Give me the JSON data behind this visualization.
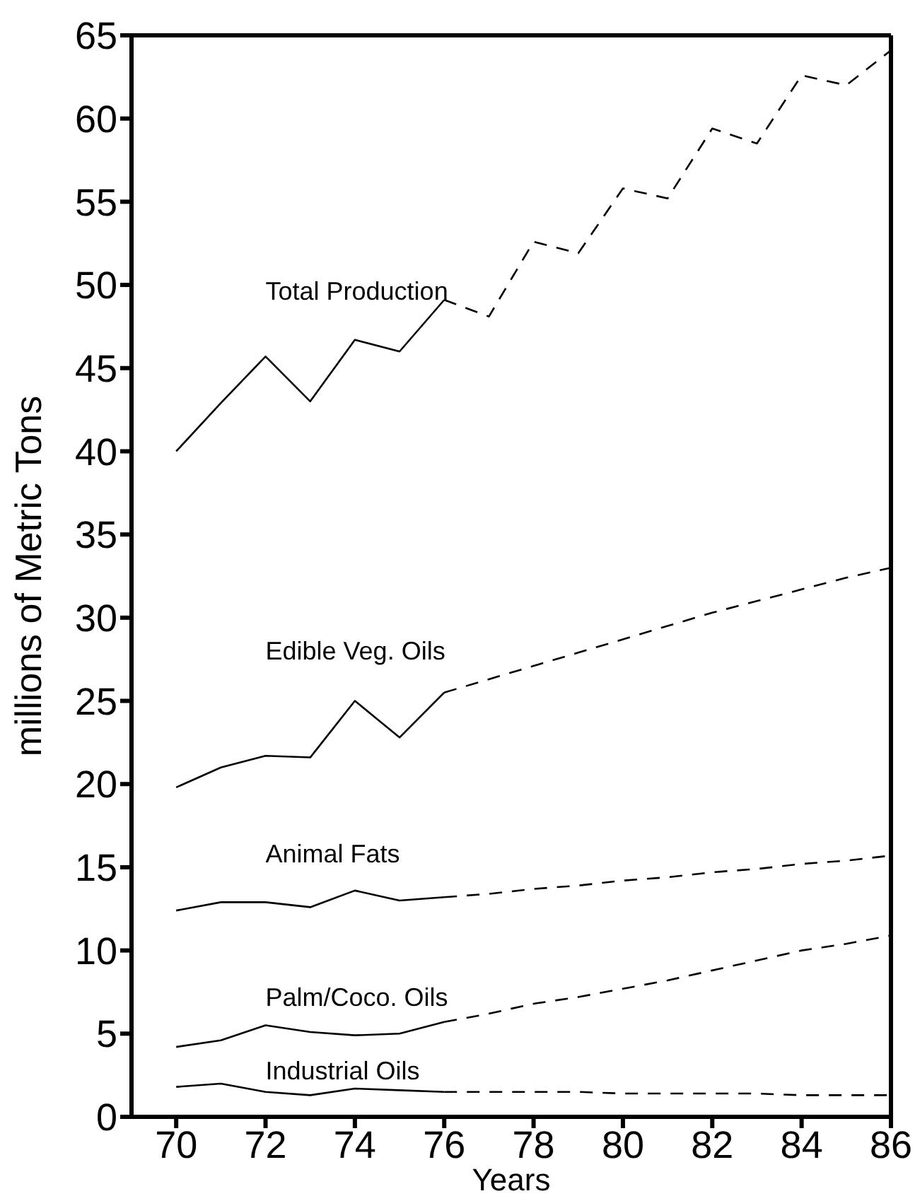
{
  "chart_data": {
    "type": "line",
    "xlabel": "Years",
    "ylabel": "millions of Metric Tons",
    "xlim": [
      69,
      86
    ],
    "ylim": [
      0,
      65
    ],
    "xticks": [
      70,
      72,
      74,
      76,
      78,
      80,
      82,
      84,
      86
    ],
    "yticks": [
      0,
      5,
      10,
      15,
      20,
      25,
      30,
      35,
      40,
      45,
      50,
      55,
      60,
      65
    ],
    "grid": false,
    "legend": false,
    "marker": "none",
    "series": [
      {
        "name": "Total Production",
        "color": "#000000",
        "line_style": "solid",
        "x": [
          70,
          71,
          72,
          73,
          74,
          75,
          76
        ],
        "values": [
          40,
          42.9,
          45.7,
          43.0,
          46.7,
          46.0,
          49.1
        ]
      },
      {
        "color": "#000000",
        "line_style": "dashed",
        "x": [
          76,
          77,
          78,
          79,
          80,
          81,
          82,
          83,
          84,
          85,
          86
        ],
        "values": [
          49.1,
          48.1,
          52.6,
          51.9,
          55.8,
          55.2,
          59.4,
          58.5,
          62.6,
          62.0,
          64.1
        ]
      },
      {
        "name": "Edible Veg. Oils",
        "color": "#000000",
        "line_style": "solid",
        "x": [
          70,
          71,
          72,
          73,
          74,
          75,
          76
        ],
        "values": [
          19.8,
          21.0,
          21.7,
          21.6,
          25.0,
          22.8,
          25.5
        ]
      },
      {
        "color": "#000000",
        "line_style": "dashed",
        "x": [
          76,
          77,
          78,
          79,
          80,
          81,
          82,
          83,
          84,
          85,
          86
        ],
        "values": [
          25.5,
          26.3,
          27.1,
          27.9,
          28.7,
          29.5,
          30.3,
          31.0,
          31.7,
          32.4,
          33.0
        ]
      },
      {
        "name": "Animal Fats",
        "color": "#000000",
        "line_style": "solid",
        "x": [
          70,
          71,
          72,
          73,
          74,
          75,
          76
        ],
        "values": [
          12.4,
          12.9,
          12.9,
          12.6,
          13.6,
          13.0,
          13.2
        ]
      },
      {
        "color": "#000000",
        "line_style": "dashed",
        "x": [
          76,
          77,
          78,
          79,
          80,
          81,
          82,
          83,
          84,
          85,
          86
        ],
        "values": [
          13.2,
          13.4,
          13.7,
          13.9,
          14.2,
          14.4,
          14.7,
          14.9,
          15.2,
          15.4,
          15.7
        ]
      },
      {
        "name": "Palm/Coco. Oils",
        "color": "#000000",
        "line_style": "solid",
        "x": [
          70,
          71,
          72,
          73,
          74,
          75,
          76
        ],
        "values": [
          4.2,
          4.6,
          5.5,
          5.1,
          4.9,
          5.0,
          5.7
        ]
      },
      {
        "color": "#000000",
        "line_style": "dashed",
        "x": [
          76,
          77,
          78,
          79,
          80,
          81,
          82,
          83,
          84,
          85,
          86
        ],
        "values": [
          5.7,
          6.2,
          6.8,
          7.2,
          7.7,
          8.2,
          8.8,
          9.4,
          10.0,
          10.4,
          10.9
        ]
      },
      {
        "name": "Industrial Oils",
        "color": "#000000",
        "line_style": "solid",
        "x": [
          70,
          71,
          72,
          73,
          74,
          75,
          76
        ],
        "values": [
          1.8,
          2.0,
          1.5,
          1.3,
          1.7,
          1.6,
          1.5
        ]
      },
      {
        "color": "#000000",
        "line_style": "dashed",
        "x": [
          76,
          77,
          78,
          79,
          80,
          81,
          82,
          83,
          84,
          85,
          86
        ],
        "values": [
          1.5,
          1.5,
          1.5,
          1.5,
          1.4,
          1.4,
          1.4,
          1.4,
          1.3,
          1.3,
          1.3
        ]
      }
    ]
  }
}
